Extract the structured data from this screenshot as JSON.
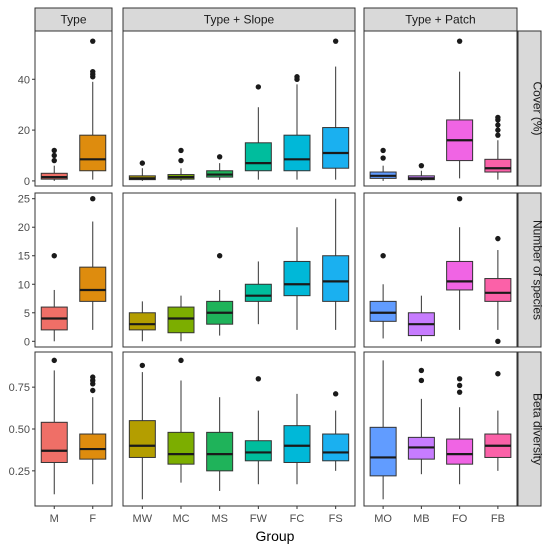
{
  "chart_data": {
    "type": "box",
    "xlabel": "Group",
    "facet_columns": [
      {
        "label": "Type",
        "groups": [
          "M",
          "F"
        ]
      },
      {
        "label": "Type + Slope",
        "groups": [
          "MW",
          "MC",
          "MS",
          "FW",
          "FC",
          "FS"
        ]
      },
      {
        "label": "Type + Patch",
        "groups": [
          "MO",
          "MB",
          "FO",
          "FB"
        ]
      }
    ],
    "group_colors": {
      "M": "#ef6f67",
      "F": "#de8c0e",
      "MW": "#b49e00",
      "MC": "#7cae00",
      "MS": "#1fb35a",
      "FW": "#00bd9d",
      "FC": "#00b8d8",
      "FS": "#1ab0f0",
      "MO": "#619cff",
      "MB": "#c77cff",
      "FO": "#f064e4",
      "FB": "#fb61a8"
    },
    "panels": [
      {
        "label": "Cover (%)",
        "ylim": [
          -2,
          59
        ],
        "yticks": [
          0,
          20,
          40
        ],
        "ytick_labels": [
          "0",
          "20",
          "40"
        ],
        "boxes": [
          {
            "group": "M",
            "whislo": 0,
            "q1": 0.7,
            "med": 1.5,
            "q3": 3,
            "whishi": 6,
            "fliers": [
              8,
              10,
              12
            ]
          },
          {
            "group": "F",
            "whislo": 0.5,
            "q1": 4,
            "med": 8.5,
            "q3": 18,
            "whishi": 39,
            "fliers": [
              41,
              42,
              43,
              55
            ]
          },
          {
            "group": "MW",
            "whislo": 0,
            "q1": 0.5,
            "med": 1,
            "q3": 2,
            "whishi": 5,
            "fliers": [
              7
            ]
          },
          {
            "group": "MC",
            "whislo": 0,
            "q1": 0.7,
            "med": 1.5,
            "q3": 2.5,
            "whishi": 5,
            "fliers": [
              8,
              12
            ]
          },
          {
            "group": "MS",
            "whislo": 0.3,
            "q1": 1.5,
            "med": 2.5,
            "q3": 4,
            "whishi": 7,
            "fliers": [
              9.5
            ]
          },
          {
            "group": "FW",
            "whislo": 0.5,
            "q1": 4,
            "med": 7,
            "q3": 15,
            "whishi": 29,
            "fliers": [
              37
            ]
          },
          {
            "group": "FC",
            "whislo": 0.5,
            "q1": 4,
            "med": 8.5,
            "q3": 18,
            "whishi": 38,
            "fliers": [
              40,
              41
            ]
          },
          {
            "group": "FS",
            "whislo": 0.5,
            "q1": 5,
            "med": 11,
            "q3": 21,
            "whishi": 45,
            "fliers": [
              55
            ]
          },
          {
            "group": "MO",
            "whislo": 0,
            "q1": 1,
            "med": 2,
            "q3": 3.5,
            "whishi": 6,
            "fliers": [
              9,
              12
            ]
          },
          {
            "group": "MB",
            "whislo": 0,
            "q1": 0.5,
            "med": 1,
            "q3": 2,
            "whishi": 4,
            "fliers": [
              6
            ]
          },
          {
            "group": "FO",
            "whislo": 1,
            "q1": 8,
            "med": 16,
            "q3": 24,
            "whishi": 43,
            "fliers": [
              55
            ]
          },
          {
            "group": "FB",
            "whislo": 0.5,
            "q1": 3.5,
            "med": 5,
            "q3": 8.5,
            "whishi": 16,
            "fliers": [
              18,
              20,
              22,
              24,
              25
            ]
          }
        ]
      },
      {
        "label": "Number of species",
        "ylim": [
          -1,
          26
        ],
        "yticks": [
          0,
          5,
          10,
          15,
          20,
          25
        ],
        "ytick_labels": [
          "0",
          "5",
          "10",
          "15",
          "20",
          "25"
        ],
        "boxes": [
          {
            "group": "M",
            "whislo": 0,
            "q1": 2,
            "med": 4,
            "q3": 6,
            "whishi": 9,
            "fliers": [
              15
            ]
          },
          {
            "group": "F",
            "whislo": 2,
            "q1": 7,
            "med": 9,
            "q3": 13,
            "whishi": 21,
            "fliers": [
              25
            ]
          },
          {
            "group": "MW",
            "whislo": 0,
            "q1": 2,
            "med": 3,
            "q3": 5,
            "whishi": 7,
            "fliers": []
          },
          {
            "group": "MC",
            "whislo": 0,
            "q1": 1.5,
            "med": 4,
            "q3": 6,
            "whishi": 8,
            "fliers": []
          },
          {
            "group": "MS",
            "whislo": 1,
            "q1": 3,
            "med": 5,
            "q3": 7,
            "whishi": 9,
            "fliers": [
              15
            ]
          },
          {
            "group": "FW",
            "whislo": 3,
            "q1": 7,
            "med": 8,
            "q3": 10,
            "whishi": 14,
            "fliers": []
          },
          {
            "group": "FC",
            "whislo": 2,
            "q1": 8,
            "med": 10,
            "q3": 14,
            "whishi": 20,
            "fliers": []
          },
          {
            "group": "FS",
            "whislo": 2,
            "q1": 7,
            "med": 10.5,
            "q3": 15,
            "whishi": 25,
            "fliers": []
          },
          {
            "group": "MO",
            "whislo": 0.5,
            "q1": 3.5,
            "med": 5,
            "q3": 7,
            "whishi": 10,
            "fliers": [
              15
            ]
          },
          {
            "group": "MB",
            "whislo": 0,
            "q1": 1,
            "med": 3,
            "q3": 5,
            "whishi": 8,
            "fliers": []
          },
          {
            "group": "FO",
            "whislo": 2,
            "q1": 9,
            "med": 10.5,
            "q3": 14,
            "whishi": 20,
            "fliers": [
              25
            ]
          },
          {
            "group": "FB",
            "whislo": 2,
            "q1": 7,
            "med": 8.5,
            "q3": 11,
            "whishi": 16,
            "fliers": [
              18,
              0
            ]
          }
        ]
      },
      {
        "label": "Beta diversity",
        "ylim": [
          0.04,
          0.96
        ],
        "yticks": [
          0.25,
          0.5,
          0.75
        ],
        "ytick_labels": [
          "0.25",
          "0.50",
          "0.75"
        ],
        "boxes": [
          {
            "group": "M",
            "whislo": 0.11,
            "q1": 0.3,
            "med": 0.37,
            "q3": 0.54,
            "whishi": 0.85,
            "fliers": [
              0.91
            ]
          },
          {
            "group": "F",
            "whislo": 0.17,
            "q1": 0.32,
            "med": 0.38,
            "q3": 0.47,
            "whishi": 0.69,
            "fliers": [
              0.73,
              0.77,
              0.79,
              0.81
            ]
          },
          {
            "group": "MW",
            "whislo": 0.08,
            "q1": 0.33,
            "med": 0.4,
            "q3": 0.55,
            "whishi": 0.84,
            "fliers": [
              0.88
            ]
          },
          {
            "group": "MC",
            "whislo": 0.18,
            "q1": 0.29,
            "med": 0.35,
            "q3": 0.48,
            "whishi": 0.79,
            "fliers": [
              0.91
            ]
          },
          {
            "group": "MS",
            "whislo": 0.13,
            "q1": 0.25,
            "med": 0.35,
            "q3": 0.48,
            "whishi": 0.69,
            "fliers": []
          },
          {
            "group": "FW",
            "whislo": 0.17,
            "q1": 0.31,
            "med": 0.36,
            "q3": 0.43,
            "whishi": 0.61,
            "fliers": [
              0.8
            ]
          },
          {
            "group": "FC",
            "whislo": 0.17,
            "q1": 0.3,
            "med": 0.4,
            "q3": 0.52,
            "whishi": 0.71,
            "fliers": []
          },
          {
            "group": "FS",
            "whislo": 0.25,
            "q1": 0.31,
            "med": 0.36,
            "q3": 0.47,
            "whishi": 0.61,
            "fliers": [
              0.71
            ]
          },
          {
            "group": "MO",
            "whislo": 0.08,
            "q1": 0.22,
            "med": 0.33,
            "q3": 0.51,
            "whishi": 0.91,
            "fliers": []
          },
          {
            "group": "MB",
            "whislo": 0.23,
            "q1": 0.32,
            "med": 0.39,
            "q3": 0.45,
            "whishi": 0.68,
            "fliers": [
              0.79,
              0.85
            ]
          },
          {
            "group": "FO",
            "whislo": 0.17,
            "q1": 0.29,
            "med": 0.35,
            "q3": 0.44,
            "whishi": 0.63,
            "fliers": [
              0.72,
              0.76,
              0.8
            ]
          },
          {
            "group": "FB",
            "whislo": 0.25,
            "q1": 0.33,
            "med": 0.4,
            "q3": 0.47,
            "whishi": 0.61,
            "fliers": [
              0.83
            ]
          }
        ]
      }
    ]
  }
}
